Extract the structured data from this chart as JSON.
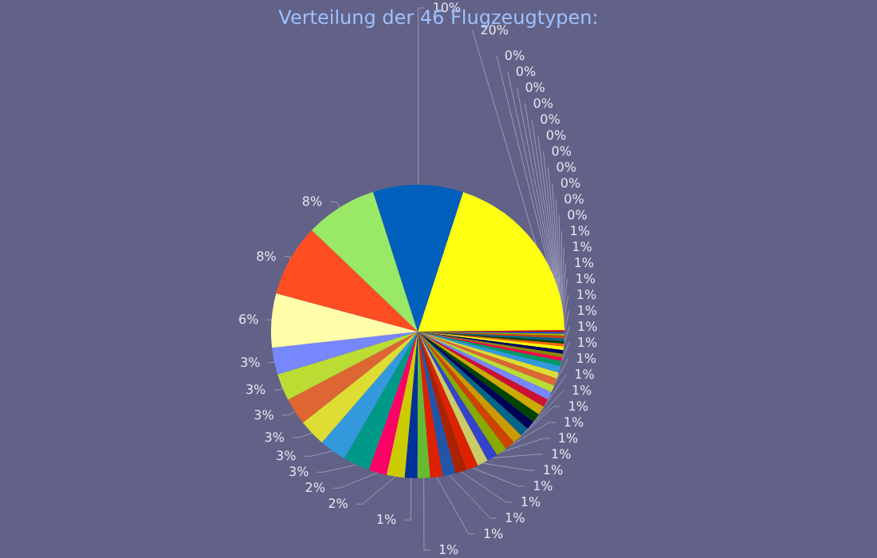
{
  "chart_data": {
    "type": "pie",
    "title": "Verteilung der 46 Flugzeugtypen:",
    "categories": [
      null,
      null,
      null,
      null,
      null,
      null,
      null,
      null,
      null,
      null,
      null,
      null,
      null,
      null,
      null,
      null,
      null,
      null,
      null,
      null,
      null,
      null,
      null,
      null,
      null,
      null,
      null,
      null,
      null,
      null,
      null,
      null,
      null,
      null,
      null,
      null,
      null,
      null,
      null,
      null,
      null,
      null,
      null,
      null,
      null,
      null
    ],
    "values": [
      20,
      0.2,
      0.2,
      0.2,
      0.3,
      0.3,
      0.3,
      0.3,
      0.4,
      0.4,
      0.4,
      0.4,
      0.6,
      0.7,
      0.7,
      0.8,
      0.8,
      0.9,
      0.9,
      1,
      1,
      1,
      1,
      1.1,
      1.1,
      1.2,
      1.2,
      1.2,
      1.3,
      1.3,
      1.4,
      1.4,
      1.4,
      1.4,
      2,
      2,
      3,
      3,
      3,
      3,
      3,
      3,
      6,
      8,
      8,
      10
    ],
    "value_labels": [
      "20%",
      "0%",
      "0%",
      "0%",
      "0%",
      "0%",
      "0%",
      "0%",
      "0%",
      "0%",
      "0%",
      "0%",
      "1%",
      "1%",
      "1%",
      "1%",
      "1%",
      "1%",
      "1%",
      "1%",
      "1%",
      "1%",
      "1%",
      "1%",
      "1%",
      "1%",
      "1%",
      "1%",
      "1%",
      "1%",
      "1%",
      "1%",
      "1%",
      "1%",
      "2%",
      "2%",
      "3%",
      "3%",
      "3%",
      "3%",
      "3%",
      "3%",
      "6%",
      "8%",
      "8%",
      "10%"
    ],
    "colors": [
      "#ffff11",
      "#dd0000",
      "#2244cc",
      "#99bb00",
      "#cc4400",
      "#006688",
      "#004400",
      "#ff6600",
      "#ffff00",
      "#000066",
      "#888800",
      "#ff0044",
      "#009966",
      "#3399dd",
      "#dddd33",
      "#dd6633",
      "#bbdd33",
      "#7788ff",
      "#cc1133",
      "#ccaa00",
      "#004400",
      "#000055",
      "#006688",
      "#cc9900",
      "#cc4400",
      "#88aa00",
      "#3344cc",
      "#cccc66",
      "#dd2200",
      "#aa2200",
      "#2255aa",
      "#dd2200",
      "#66bb33",
      "#003399",
      "#cccc00",
      "#ff0066",
      "#009988",
      "#3399dd",
      "#dddd33",
      "#dd6633",
      "#bbdd33",
      "#7788ff",
      "#ffffaa",
      "#ff4d22",
      "#99e866",
      "#0060bb"
    ],
    "data_labels": false
  }
}
